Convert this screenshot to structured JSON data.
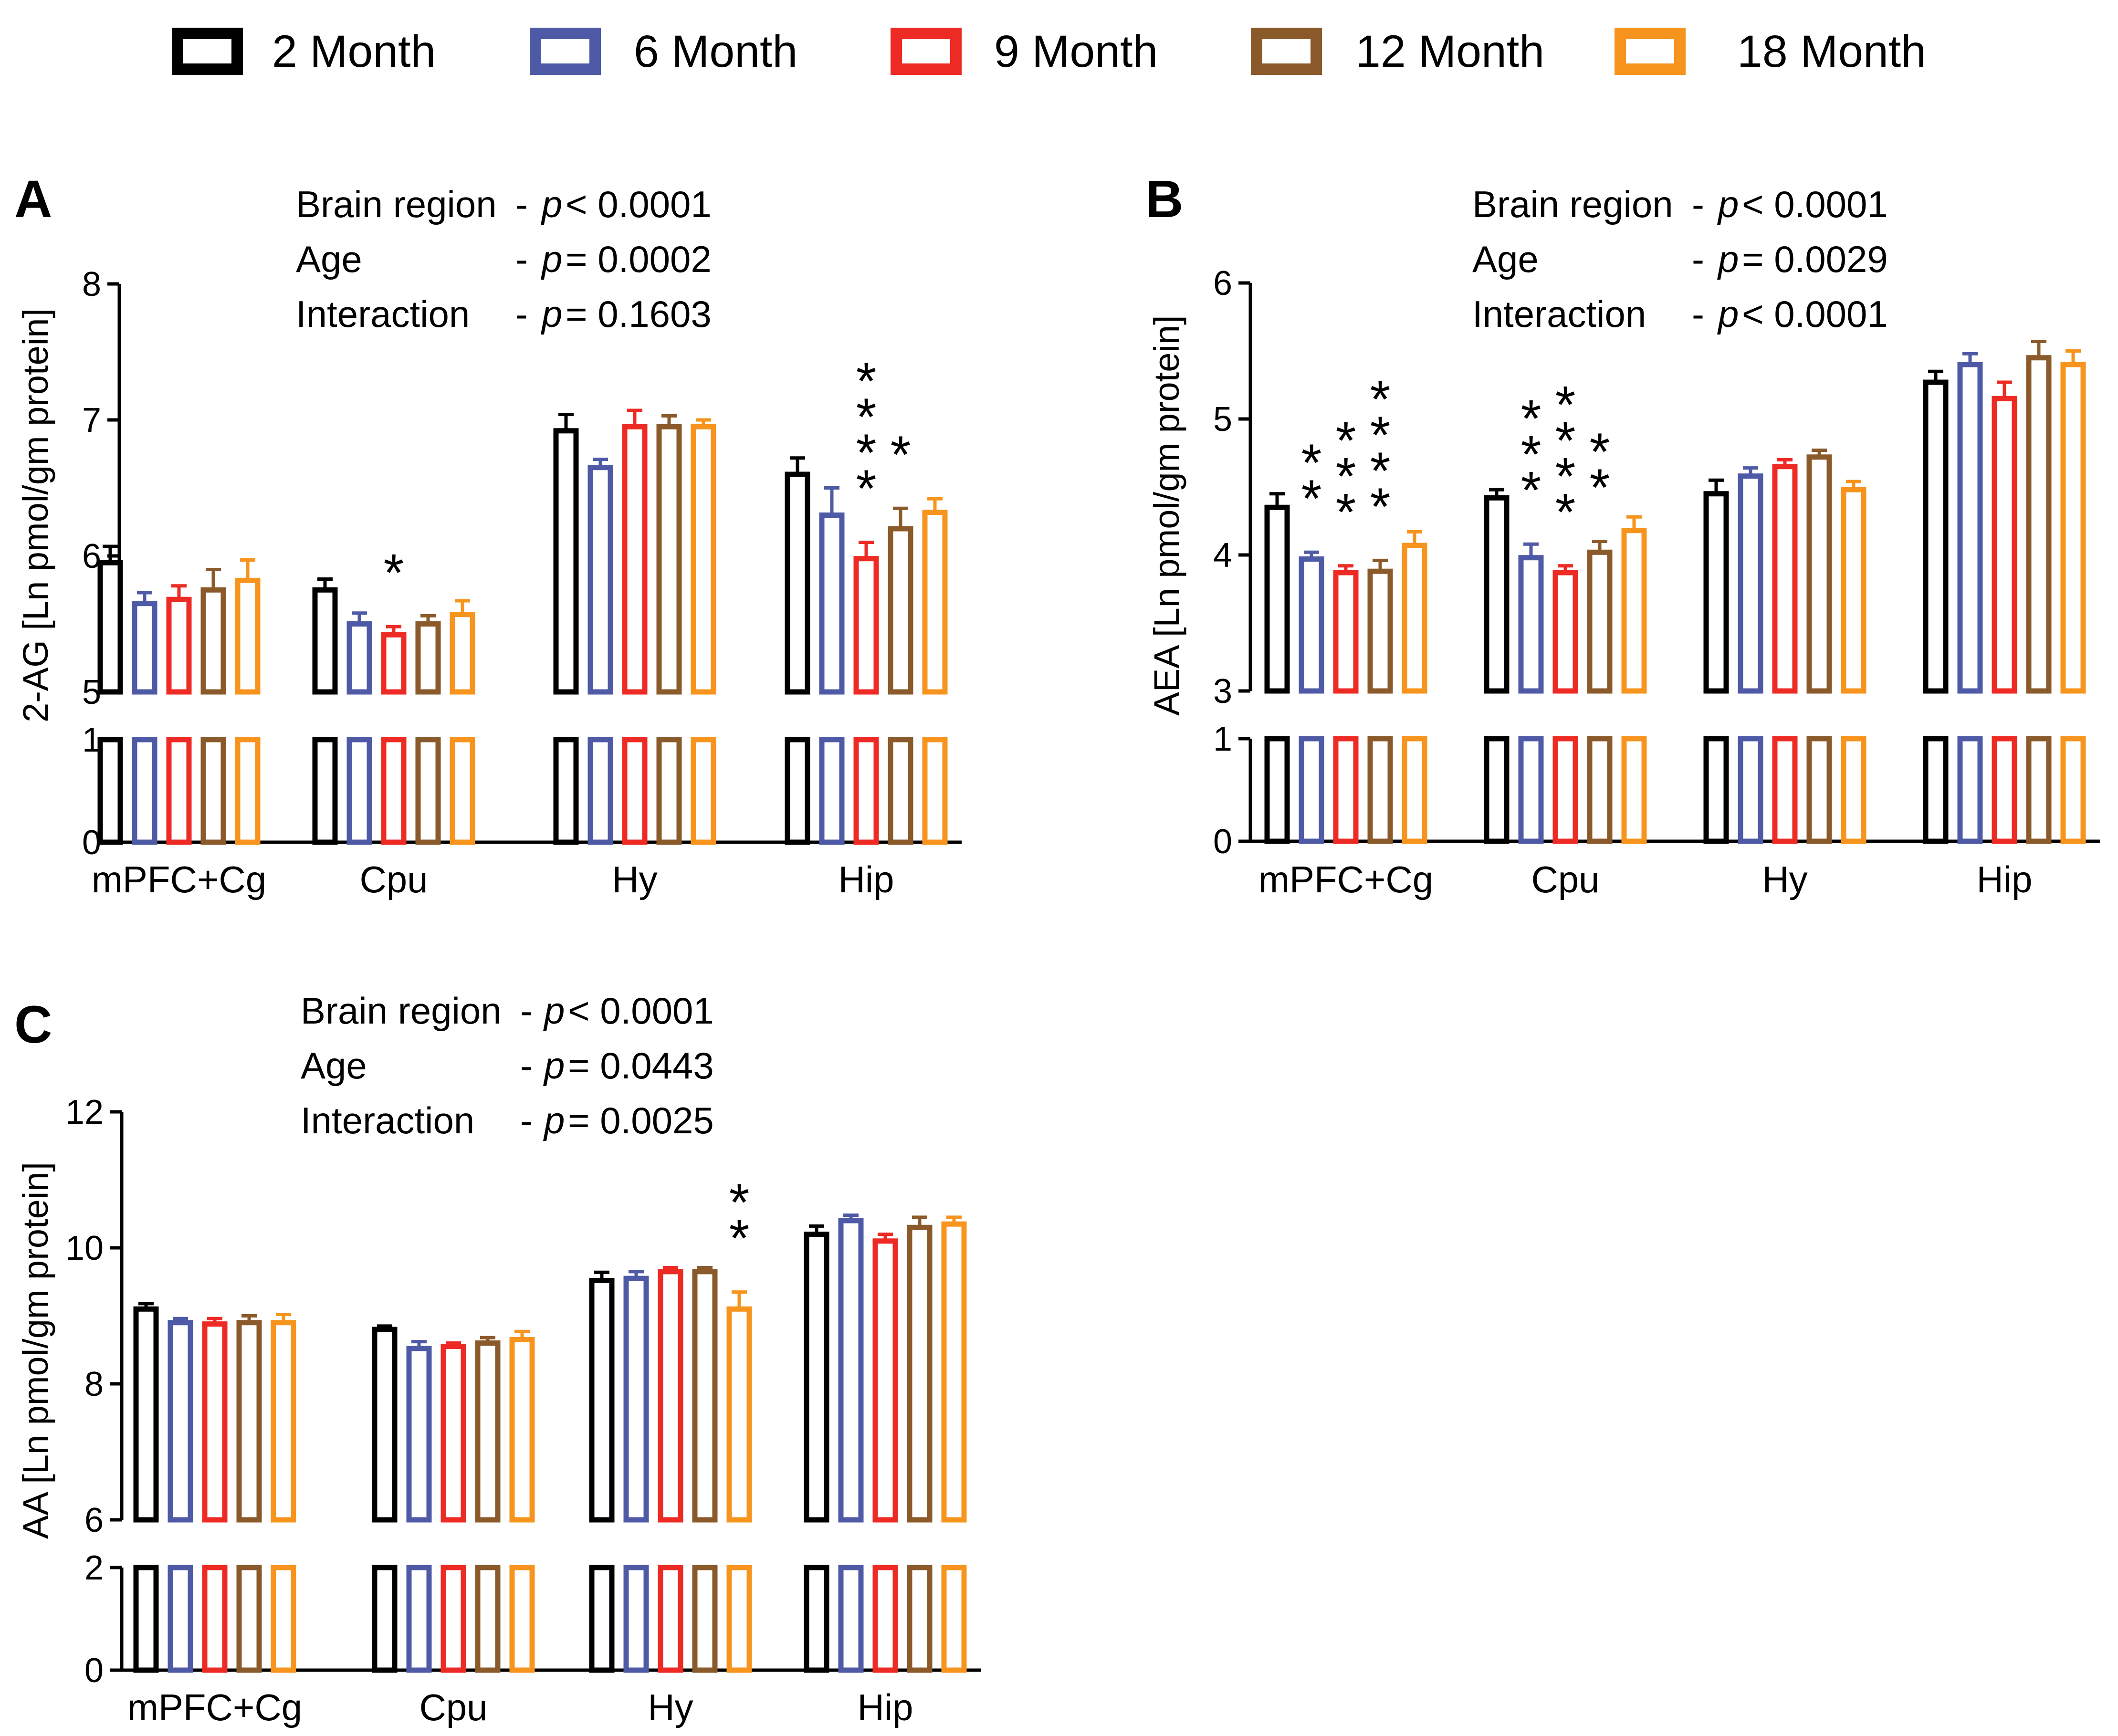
{
  "legend": {
    "items": [
      {
        "label": "2 Month",
        "color": "#000000"
      },
      {
        "label": "6 Month",
        "color": "#4f5aa6"
      },
      {
        "label": "9 Month",
        "color": "#ee2a24"
      },
      {
        "label": "12 Month",
        "color": "#8b5a2b"
      },
      {
        "label": "18 Month",
        "color": "#f7941d"
      }
    ]
  },
  "chart_data": [
    {
      "type": "bar",
      "panel": "A",
      "ylabel": "2-AG [Ln pmol/gm protein]",
      "categories": [
        "mPFC+Cg",
        "Cpu",
        "Hy",
        "Hip"
      ],
      "ylim_upper": [
        5,
        8
      ],
      "yticks_upper": [
        5,
        6,
        7,
        8
      ],
      "ylim_lower": [
        0,
        1
      ],
      "yticks_lower": [
        0,
        1
      ],
      "stats": [
        {
          "label": "Brain region",
          "symbol": "p",
          "text": "< 0.0001"
        },
        {
          "label": "Age",
          "symbol": "p",
          "text": "= 0.0002"
        },
        {
          "label": "Interaction",
          "symbol": "p",
          "text": "= 0.1603"
        }
      ],
      "series": [
        {
          "name": "2 Month",
          "values": [
            5.95,
            5.75,
            6.92,
            6.6
          ],
          "errors": [
            0.12,
            0.08,
            0.12,
            0.12
          ]
        },
        {
          "name": "6 Month",
          "values": [
            5.65,
            5.5,
            6.65,
            6.3
          ],
          "errors": [
            0.08,
            0.08,
            0.06,
            0.2
          ]
        },
        {
          "name": "9 Month",
          "values": [
            5.68,
            5.42,
            6.95,
            5.98
          ],
          "errors": [
            0.1,
            0.06,
            0.12,
            0.12
          ]
        },
        {
          "name": "12 Month",
          "values": [
            5.75,
            5.5,
            6.95,
            6.2
          ],
          "errors": [
            0.15,
            0.06,
            0.08,
            0.15
          ]
        },
        {
          "name": "18 Month",
          "values": [
            5.82,
            5.57,
            6.95,
            6.32
          ],
          "errors": [
            0.15,
            0.1,
            0.05,
            0.1
          ]
        }
      ],
      "significance": [
        {
          "category": "Cpu",
          "series": "9 Month",
          "stars": "*"
        },
        {
          "category": "Hip",
          "series": "9 Month",
          "stars": "****"
        },
        {
          "category": "Hip",
          "series": "12 Month",
          "stars": "*"
        }
      ]
    },
    {
      "type": "bar",
      "panel": "B",
      "ylabel": "AEA [Ln pmol/gm protein]",
      "categories": [
        "mPFC+Cg",
        "Cpu",
        "Hy",
        "Hip"
      ],
      "ylim_upper": [
        3,
        6
      ],
      "yticks_upper": [
        3,
        4,
        5,
        6
      ],
      "ylim_lower": [
        0,
        1
      ],
      "yticks_lower": [
        0,
        1
      ],
      "stats": [
        {
          "label": "Brain region",
          "symbol": "p",
          "text": "< 0.0001"
        },
        {
          "label": "Age",
          "symbol": "p",
          "text": "= 0.0029"
        },
        {
          "label": "Interaction",
          "symbol": "p",
          "text": "< 0.0001"
        }
      ],
      "series": [
        {
          "name": "2 Month",
          "values": [
            4.35,
            4.42,
            4.45,
            5.27
          ],
          "errors": [
            0.1,
            0.06,
            0.1,
            0.08
          ]
        },
        {
          "name": "6 Month",
          "values": [
            3.97,
            3.98,
            4.58,
            5.4
          ],
          "errors": [
            0.05,
            0.1,
            0.06,
            0.08
          ]
        },
        {
          "name": "9 Month",
          "values": [
            3.87,
            3.87,
            4.65,
            5.15
          ],
          "errors": [
            0.05,
            0.05,
            0.05,
            0.12
          ]
        },
        {
          "name": "12 Month",
          "values": [
            3.88,
            4.02,
            4.72,
            5.45
          ],
          "errors": [
            0.08,
            0.08,
            0.05,
            0.12
          ]
        },
        {
          "name": "18 Month",
          "values": [
            4.07,
            4.18,
            4.48,
            5.4
          ],
          "errors": [
            0.1,
            0.1,
            0.06,
            0.1
          ]
        }
      ],
      "significance": [
        {
          "category": "mPFC+Cg",
          "series": "6 Month",
          "stars": "**"
        },
        {
          "category": "mPFC+Cg",
          "series": "9 Month",
          "stars": "***"
        },
        {
          "category": "mPFC+Cg",
          "series": "12 Month",
          "stars": "****"
        },
        {
          "category": "Cpu",
          "series": "6 Month",
          "stars": "***"
        },
        {
          "category": "Cpu",
          "series": "9 Month",
          "stars": "****"
        },
        {
          "category": "Cpu",
          "series": "12 Month",
          "stars": "**"
        }
      ]
    },
    {
      "type": "bar",
      "panel": "C",
      "ylabel": "AA [Ln pmol/gm protein]",
      "categories": [
        "mPFC+Cg",
        "Cpu",
        "Hy",
        "Hip"
      ],
      "ylim_upper": [
        6,
        12
      ],
      "yticks_upper": [
        6,
        8,
        10,
        12
      ],
      "ylim_lower": [
        0,
        2
      ],
      "yticks_lower": [
        0,
        2
      ],
      "stats": [
        {
          "label": "Brain region",
          "symbol": "p",
          "text": "< 0.0001"
        },
        {
          "label": "Age",
          "symbol": "p",
          "text": "= 0.0443"
        },
        {
          "label": "Interaction",
          "symbol": "p",
          "text": "= 0.0025"
        }
      ],
      "series": [
        {
          "name": "2 Month",
          "values": [
            9.1,
            8.8,
            9.52,
            10.2
          ],
          "errors": [
            0.08,
            0.05,
            0.12,
            0.12
          ]
        },
        {
          "name": "6 Month",
          "values": [
            8.9,
            8.52,
            9.55,
            10.4
          ],
          "errors": [
            0.06,
            0.1,
            0.1,
            0.08
          ]
        },
        {
          "name": "9 Month",
          "values": [
            8.88,
            8.55,
            9.65,
            10.1
          ],
          "errors": [
            0.08,
            0.05,
            0.06,
            0.1
          ]
        },
        {
          "name": "12 Month",
          "values": [
            8.9,
            8.6,
            9.65,
            10.3
          ],
          "errors": [
            0.1,
            0.08,
            0.06,
            0.15
          ]
        },
        {
          "name": "18 Month",
          "values": [
            8.9,
            8.65,
            9.1,
            10.35
          ],
          "errors": [
            0.12,
            0.12,
            0.25,
            0.1
          ]
        }
      ],
      "significance": [
        {
          "category": "Hy",
          "series": "18 Month",
          "stars": "**"
        }
      ]
    }
  ]
}
